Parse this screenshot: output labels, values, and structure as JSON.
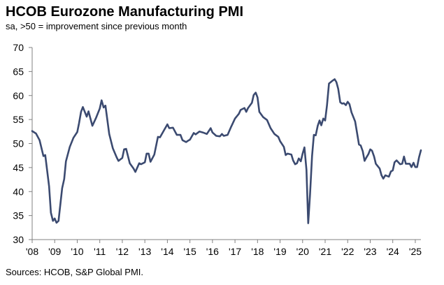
{
  "chart_data": {
    "type": "line",
    "title": "HCOB Eurozone Manufacturing PMI",
    "subtitle": "sa, >50 = improvement since previous month",
    "source": "Sources: HCOB, S&P Global PMI.",
    "ylim": [
      30,
      70
    ],
    "yticks": [
      "30",
      "35",
      "40",
      "45",
      "50",
      "55",
      "60",
      "65",
      "70"
    ],
    "xlim": [
      2008.0,
      2025.25
    ],
    "xticks": [
      {
        "x": 2008,
        "label": "'08"
      },
      {
        "x": 2009,
        "label": "'09"
      },
      {
        "x": 2010,
        "label": "'10"
      },
      {
        "x": 2011,
        "label": "'11"
      },
      {
        "x": 2012,
        "label": "'12"
      },
      {
        "x": 2013,
        "label": "'13"
      },
      {
        "x": 2014,
        "label": "'14"
      },
      {
        "x": 2015,
        "label": "'15"
      },
      {
        "x": 2016,
        "label": "'16"
      },
      {
        "x": 2017,
        "label": "'17"
      },
      {
        "x": 2018,
        "label": "'18"
      },
      {
        "x": 2019,
        "label": "'19"
      },
      {
        "x": 2020,
        "label": "'20"
      },
      {
        "x": 2021,
        "label": "'21"
      },
      {
        "x": 2022,
        "label": "'22"
      },
      {
        "x": 2023,
        "label": "'23"
      },
      {
        "x": 2024,
        "label": "'24"
      },
      {
        "x": 2025,
        "label": "'25"
      }
    ],
    "grid": false,
    "series": [
      {
        "color": "#3b4a70",
        "points": [
          [
            2008.0,
            52.6
          ],
          [
            2008.17,
            52.1
          ],
          [
            2008.33,
            50.7
          ],
          [
            2008.5,
            47.4
          ],
          [
            2008.58,
            47.6
          ],
          [
            2008.75,
            41.1
          ],
          [
            2008.83,
            35.6
          ],
          [
            2008.92,
            33.9
          ],
          [
            2009.0,
            34.4
          ],
          [
            2009.08,
            33.5
          ],
          [
            2009.17,
            33.9
          ],
          [
            2009.33,
            40.7
          ],
          [
            2009.42,
            42.6
          ],
          [
            2009.5,
            46.3
          ],
          [
            2009.67,
            49.3
          ],
          [
            2009.83,
            51.2
          ],
          [
            2010.0,
            52.4
          ],
          [
            2010.08,
            54.2
          ],
          [
            2010.17,
            56.6
          ],
          [
            2010.25,
            57.6
          ],
          [
            2010.42,
            55.6
          ],
          [
            2010.5,
            56.7
          ],
          [
            2010.67,
            53.7
          ],
          [
            2010.83,
            55.3
          ],
          [
            2011.0,
            57.3
          ],
          [
            2011.08,
            59.0
          ],
          [
            2011.17,
            57.5
          ],
          [
            2011.25,
            57.9
          ],
          [
            2011.42,
            52.0
          ],
          [
            2011.58,
            49.0
          ],
          [
            2011.75,
            47.1
          ],
          [
            2011.83,
            46.4
          ],
          [
            2012.0,
            47.0
          ],
          [
            2012.08,
            48.8
          ],
          [
            2012.17,
            48.9
          ],
          [
            2012.33,
            45.9
          ],
          [
            2012.5,
            44.8
          ],
          [
            2012.58,
            44.1
          ],
          [
            2012.75,
            45.9
          ],
          [
            2012.83,
            45.7
          ],
          [
            2013.0,
            46.1
          ],
          [
            2013.08,
            47.9
          ],
          [
            2013.17,
            47.9
          ],
          [
            2013.25,
            46.2
          ],
          [
            2013.42,
            47.7
          ],
          [
            2013.58,
            51.4
          ],
          [
            2013.67,
            51.3
          ],
          [
            2013.83,
            52.6
          ],
          [
            2014.0,
            54.0
          ],
          [
            2014.08,
            53.2
          ],
          [
            2014.25,
            53.3
          ],
          [
            2014.42,
            51.8
          ],
          [
            2014.58,
            51.8
          ],
          [
            2014.67,
            50.7
          ],
          [
            2014.83,
            50.3
          ],
          [
            2014.92,
            50.6
          ],
          [
            2015.0,
            50.8
          ],
          [
            2015.17,
            52.2
          ],
          [
            2015.25,
            51.9
          ],
          [
            2015.42,
            52.5
          ],
          [
            2015.58,
            52.3
          ],
          [
            2015.75,
            52.0
          ],
          [
            2015.92,
            53.2
          ],
          [
            2016.0,
            52.3
          ],
          [
            2016.17,
            51.6
          ],
          [
            2016.33,
            51.5
          ],
          [
            2016.42,
            52.0
          ],
          [
            2016.5,
            51.6
          ],
          [
            2016.67,
            51.8
          ],
          [
            2016.83,
            53.5
          ],
          [
            2017.0,
            55.2
          ],
          [
            2017.17,
            56.2
          ],
          [
            2017.25,
            57.0
          ],
          [
            2017.42,
            57.4
          ],
          [
            2017.5,
            56.6
          ],
          [
            2017.58,
            57.4
          ],
          [
            2017.75,
            58.5
          ],
          [
            2017.83,
            60.1
          ],
          [
            2017.92,
            60.6
          ],
          [
            2018.0,
            59.6
          ],
          [
            2018.08,
            56.6
          ],
          [
            2018.25,
            55.5
          ],
          [
            2018.42,
            54.9
          ],
          [
            2018.58,
            53.2
          ],
          [
            2018.75,
            52.0
          ],
          [
            2018.92,
            51.4
          ],
          [
            2019.0,
            50.5
          ],
          [
            2019.17,
            49.3
          ],
          [
            2019.25,
            47.6
          ],
          [
            2019.33,
            47.9
          ],
          [
            2019.5,
            47.7
          ],
          [
            2019.58,
            46.5
          ],
          [
            2019.67,
            45.7
          ],
          [
            2019.75,
            45.9
          ],
          [
            2019.83,
            46.9
          ],
          [
            2019.92,
            46.3
          ],
          [
            2020.0,
            47.9
          ],
          [
            2020.08,
            49.2
          ],
          [
            2020.17,
            44.5
          ],
          [
            2020.25,
            33.4
          ],
          [
            2020.33,
            39.4
          ],
          [
            2020.42,
            47.4
          ],
          [
            2020.5,
            51.8
          ],
          [
            2020.58,
            51.7
          ],
          [
            2020.67,
            53.7
          ],
          [
            2020.75,
            54.8
          ],
          [
            2020.83,
            53.8
          ],
          [
            2020.92,
            55.2
          ],
          [
            2021.0,
            54.8
          ],
          [
            2021.08,
            57.9
          ],
          [
            2021.17,
            62.5
          ],
          [
            2021.33,
            63.1
          ],
          [
            2021.42,
            63.4
          ],
          [
            2021.5,
            62.8
          ],
          [
            2021.58,
            61.4
          ],
          [
            2021.67,
            58.6
          ],
          [
            2021.75,
            58.3
          ],
          [
            2021.83,
            58.4
          ],
          [
            2021.92,
            58.0
          ],
          [
            2022.0,
            58.7
          ],
          [
            2022.08,
            58.2
          ],
          [
            2022.17,
            56.5
          ],
          [
            2022.33,
            54.6
          ],
          [
            2022.42,
            52.1
          ],
          [
            2022.5,
            49.8
          ],
          [
            2022.58,
            49.6
          ],
          [
            2022.67,
            48.4
          ],
          [
            2022.75,
            46.4
          ],
          [
            2022.83,
            47.1
          ],
          [
            2022.92,
            47.8
          ],
          [
            2023.0,
            48.8
          ],
          [
            2023.08,
            48.5
          ],
          [
            2023.17,
            47.3
          ],
          [
            2023.25,
            45.8
          ],
          [
            2023.42,
            44.8
          ],
          [
            2023.5,
            43.4
          ],
          [
            2023.58,
            42.7
          ],
          [
            2023.67,
            43.4
          ],
          [
            2023.83,
            43.1
          ],
          [
            2023.92,
            44.2
          ],
          [
            2024.0,
            44.4
          ],
          [
            2024.08,
            46.1
          ],
          [
            2024.17,
            46.5
          ],
          [
            2024.33,
            45.7
          ],
          [
            2024.42,
            45.8
          ],
          [
            2024.5,
            47.3
          ],
          [
            2024.58,
            45.8
          ],
          [
            2024.75,
            45.8
          ],
          [
            2024.83,
            45.1
          ],
          [
            2024.92,
            46.0
          ],
          [
            2025.0,
            45.1
          ],
          [
            2025.08,
            45.1
          ],
          [
            2025.17,
            47.2
          ],
          [
            2025.25,
            48.6
          ]
        ]
      }
    ]
  }
}
